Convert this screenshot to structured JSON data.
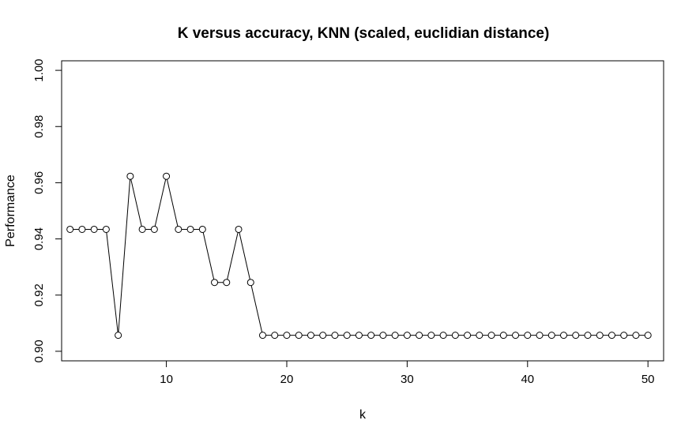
{
  "chart_data": {
    "type": "line",
    "title": "K versus accuracy, KNN (scaled, euclidian distance)",
    "xlabel": "k",
    "ylabel": "Performance",
    "xlim": [
      1.3,
      51.3
    ],
    "ylim": [
      0.8966,
      1.0034
    ],
    "xticks": [
      10,
      20,
      30,
      40,
      50
    ],
    "yticks": [
      0.9,
      0.92,
      0.94,
      0.96,
      0.98,
      1.0
    ],
    "xtick_labels": [
      "10",
      "20",
      "30",
      "40",
      "50"
    ],
    "ytick_labels": [
      "0.90",
      "0.92",
      "0.94",
      "0.96",
      "0.98",
      "1.00"
    ],
    "grid": false,
    "marker": "open-circle",
    "line_color": "#000000",
    "series": [
      {
        "x": [
          2,
          3,
          4,
          5,
          6,
          7,
          8,
          9,
          10,
          11,
          12,
          13,
          14,
          15,
          16,
          17,
          18,
          19,
          20,
          21,
          22,
          23,
          24,
          25,
          26,
          27,
          28,
          29,
          30,
          31,
          32,
          33,
          34,
          35,
          36,
          37,
          38,
          39,
          40,
          41,
          42,
          43,
          44,
          45,
          46,
          47,
          48,
          49,
          50
        ],
        "values": [
          0.9434,
          0.9434,
          0.9434,
          0.9434,
          0.9057,
          0.9623,
          0.9434,
          0.9434,
          0.9623,
          0.9434,
          0.9434,
          0.9434,
          0.9245,
          0.9245,
          0.9434,
          0.9245,
          0.9057,
          0.9057,
          0.9057,
          0.9057,
          0.9057,
          0.9057,
          0.9057,
          0.9057,
          0.9057,
          0.9057,
          0.9057,
          0.9057,
          0.9057,
          0.9057,
          0.9057,
          0.9057,
          0.9057,
          0.9057,
          0.9057,
          0.9057,
          0.9057,
          0.9057,
          0.9057,
          0.9057,
          0.9057,
          0.9057,
          0.9057,
          0.9057,
          0.9057,
          0.9057,
          0.9057,
          0.9057,
          0.9057
        ]
      }
    ]
  }
}
